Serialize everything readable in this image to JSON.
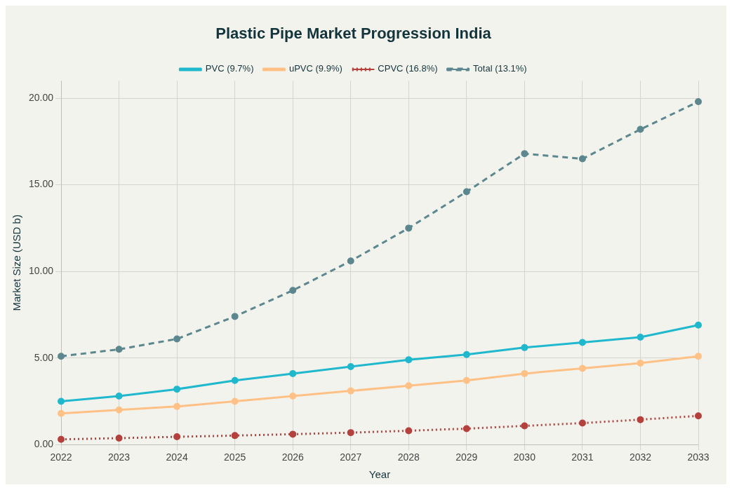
{
  "chart_data": {
    "type": "line",
    "title": "Plastic Pipe Market Progression India",
    "xlabel": "Year",
    "ylabel": "Market Size (USD b)",
    "categories": [
      "2022",
      "2023",
      "2024",
      "2025",
      "2026",
      "2027",
      "2028",
      "2029",
      "2030",
      "2031",
      "2032",
      "2033"
    ],
    "series": [
      {
        "name": "PVC (9.7%)",
        "color": "#1fb8cd",
        "line_style": "solid",
        "values": [
          2.5,
          2.8,
          3.2,
          3.7,
          4.1,
          4.5,
          4.9,
          5.2,
          5.6,
          5.9,
          6.2,
          6.9
        ]
      },
      {
        "name": "uPVC (9.9%)",
        "color": "#ffc185",
        "line_style": "solid",
        "values": [
          1.8,
          2.0,
          2.2,
          2.5,
          2.8,
          3.1,
          3.4,
          3.7,
          4.1,
          4.4,
          4.7,
          5.1
        ]
      },
      {
        "name": "CPVC (16.8%)",
        "color": "#b4413c",
        "line_style": "dotted",
        "values": [
          0.3,
          0.37,
          0.45,
          0.52,
          0.6,
          0.69,
          0.8,
          0.92,
          1.08,
          1.24,
          1.44,
          1.66
        ]
      },
      {
        "name": "Total (13.1%)",
        "color": "#5d878f",
        "line_style": "dashed",
        "values": [
          5.1,
          5.5,
          6.1,
          7.4,
          8.9,
          10.6,
          12.5,
          14.6,
          16.8,
          16.5,
          18.2,
          19.8
        ]
      }
    ],
    "ylim": [
      0,
      21
    ],
    "yticks": [
      {
        "value": 0,
        "label": "0.00"
      },
      {
        "value": 5,
        "label": "5.00"
      },
      {
        "value": 10,
        "label": "10.00"
      },
      {
        "value": 15,
        "label": "15.00"
      },
      {
        "value": 20,
        "label": "20.00"
      }
    ],
    "grid": true,
    "legend": "top",
    "marker": "circle"
  }
}
